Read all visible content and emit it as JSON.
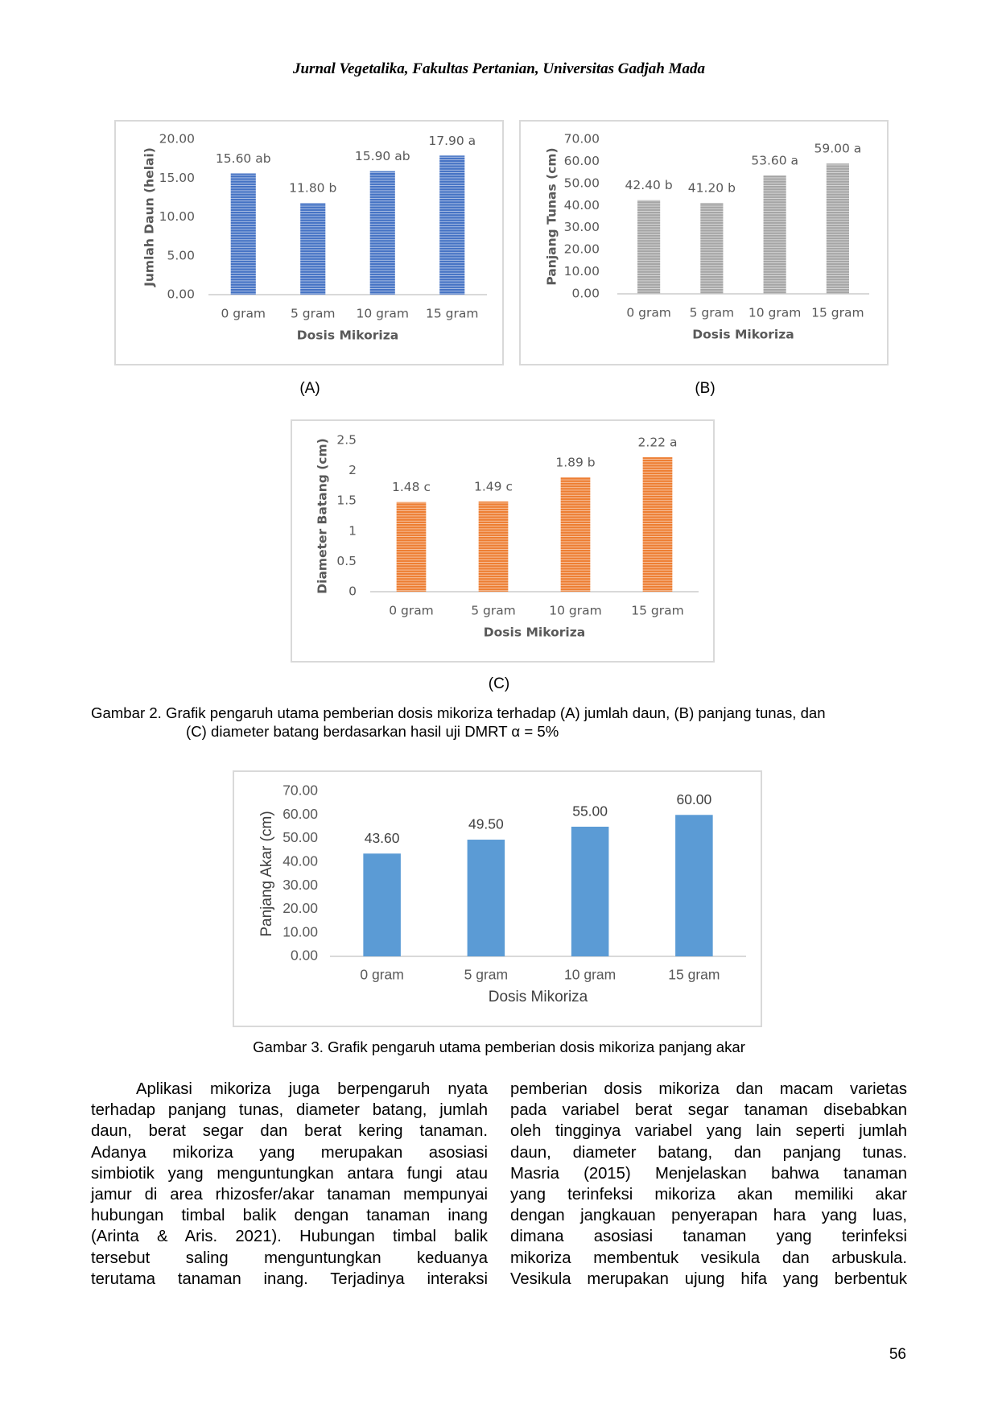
{
  "header": {
    "title": "Jurnal Vegetalika, Fakultas Pertanian, Universitas Gadjah Mada"
  },
  "chart_data": [
    {
      "type": "bar",
      "label": "(A)",
      "ylabel": "Jumlah Daun (helai)",
      "xlabel": "Dosis Mikoriza",
      "categories": [
        "0 gram",
        "5 gram",
        "10 gram",
        "15 gram"
      ],
      "values": [
        15.6,
        11.8,
        15.9,
        17.9
      ],
      "value_labels": [
        "15.60 ab",
        "11.80 b",
        "15.90 ab",
        "17.90 a"
      ],
      "color": "#4472c4",
      "hatch": true,
      "ylim": [
        0,
        20
      ],
      "yticks": [
        {
          "value": 0,
          "label": "0.00"
        },
        {
          "value": 5,
          "label": "5.00"
        },
        {
          "value": 10,
          "label": "10.00"
        },
        {
          "value": 15,
          "label": "15.00"
        },
        {
          "value": 20,
          "label": "20.00"
        }
      ]
    },
    {
      "type": "bar",
      "label": "(B)",
      "ylabel": "Panjang Tunas (cm)",
      "xlabel": "Dosis Mikoriza",
      "categories": [
        "0 gram",
        "5 gram",
        "10 gram",
        "15 gram"
      ],
      "values": [
        42.4,
        41.2,
        53.6,
        59.0
      ],
      "value_labels": [
        "42.40 b",
        "41.20 b",
        "53.60 a",
        "59.00 a"
      ],
      "color": "#a5a5a5",
      "hatch": true,
      "ylim": [
        0,
        70
      ],
      "yticks": [
        {
          "value": 0,
          "label": "0.00"
        },
        {
          "value": 10,
          "label": "10.00"
        },
        {
          "value": 20,
          "label": "20.00"
        },
        {
          "value": 30,
          "label": "30.00"
        },
        {
          "value": 40,
          "label": "40.00"
        },
        {
          "value": 50,
          "label": "50.00"
        },
        {
          "value": 60,
          "label": "60.00"
        },
        {
          "value": 70,
          "label": "70.00"
        }
      ]
    },
    {
      "type": "bar",
      "label": "(C)",
      "ylabel": "Diameter Batang (cm)",
      "xlabel": "Dosis Mikoriza",
      "categories": [
        "0 gram",
        "5 gram",
        "10 gram",
        "15 gram"
      ],
      "values": [
        1.48,
        1.49,
        1.89,
        2.22
      ],
      "value_labels": [
        "1.48 c",
        "1.49 c",
        "1.89 b",
        "2.22 a"
      ],
      "color": "#ed7d31",
      "hatch": true,
      "ylim": [
        0,
        2.5
      ],
      "yticks": [
        0,
        0.5,
        1,
        1.5,
        2,
        2.5
      ]
    },
    {
      "type": "bar",
      "ylabel": "Panjang Akar (cm)",
      "xlabel": "Dosis Mikoriza",
      "categories": [
        "0 gram",
        "5 gram",
        "10 gram",
        "15 gram"
      ],
      "values": [
        43.6,
        49.5,
        55.0,
        60.0
      ],
      "value_labels": [
        "43.60",
        "49.50",
        "55.00",
        "60.00"
      ],
      "color": "#5b9bd5",
      "hatch": false,
      "ylim": [
        0,
        70
      ],
      "yticks": [
        {
          "value": 0,
          "label": "0.00"
        },
        {
          "value": 10,
          "label": "10.00"
        },
        {
          "value": 20,
          "label": "20.00"
        },
        {
          "value": 30,
          "label": "30.00"
        },
        {
          "value": 40,
          "label": "40.00"
        },
        {
          "value": 50,
          "label": "50.00"
        },
        {
          "value": 60,
          "label": "60.00"
        },
        {
          "value": 70,
          "label": "70.00"
        }
      ]
    }
  ],
  "captions": [
    [
      "Gambar 2. Grafik pengaruh utama pemberian dosis mikoriza terhadap (A) jumlah daun, (B) panjang tunas, dan",
      "(C) diameter batang berdasarkan hasil uji DMRT α = 5%"
    ],
    [
      "Gambar 3. Grafik pengaruh utama pemberian dosis mikoriza panjang akar"
    ]
  ],
  "body": {
    "columns": [
      [
        "Aplikasi mikoriza juga berpengaruh nyata",
        "terhadap panjang tunas, diameter batang, jumlah",
        "daun, berat segar dan berat kering tanaman.",
        "Adanya mikoriza yang merupakan asosiasi",
        "simbiotik yang menguntungkan antara fungi atau",
        "jamur di area rhizosfer/akar tanaman mempunyai",
        "hubungan timbal balik dengan tanaman inang",
        "(Arinta & Aris. 2021). Hubungan timbal balik",
        "tersebut saling menguntungkan keduanya",
        "terutama tanaman inang. Terjadinya interaksi"
      ],
      [
        "pemberian dosis mikoriza dan macam varietas",
        "pada variabel berat segar tanaman disebabkan",
        "oleh tingginya variabel yang lain seperti jumlah",
        "daun, diameter batang, dan panjang tunas.",
        "Masria (2015) Menjelaskan bahwa tanaman",
        "yang terinfeksi mikoriza akan memiliki akar",
        "dengan jangkauan penyerapan hara yang luas,",
        "dimana asosiasi tanaman yang terinfeksi",
        "mikoriza membentuk vesikula dan arbuskula.",
        "Vesikula merupakan ujung hifa yang berbentuk"
      ]
    ]
  },
  "page_number": "56"
}
